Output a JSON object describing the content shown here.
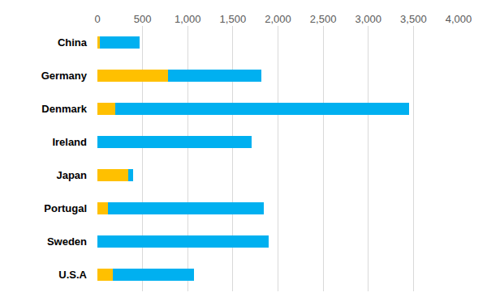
{
  "chart_data": {
    "type": "bar",
    "orientation": "horizontal",
    "stacked": true,
    "grid": true,
    "categories": [
      "China",
      "Germany",
      "Denmark",
      "Ireland",
      "Japan",
      "Portugal",
      "Sweden",
      "U.S.A"
    ],
    "series": [
      {
        "color": "#FFC000",
        "values": [
          30,
          780,
          200,
          0,
          340,
          115,
          0,
          170
        ]
      },
      {
        "color": "#00B0F0",
        "values": [
          440,
          1035,
          3250,
          1710,
          55,
          1730,
          1900,
          900
        ]
      }
    ],
    "xlim": [
      0,
      4000
    ],
    "xticks": [
      0,
      500,
      {
        "value": 1000,
        "label": "1,000"
      },
      {
        "value": 1500,
        "label": "1,500"
      },
      {
        "value": 2000,
        "label": "2,000"
      },
      {
        "value": 2500,
        "label": "2,500"
      },
      {
        "value": 3000,
        "label": "3,000"
      },
      {
        "value": 3500,
        "label": "3,500"
      },
      {
        "value": 4000,
        "label": "4,000"
      }
    ]
  }
}
